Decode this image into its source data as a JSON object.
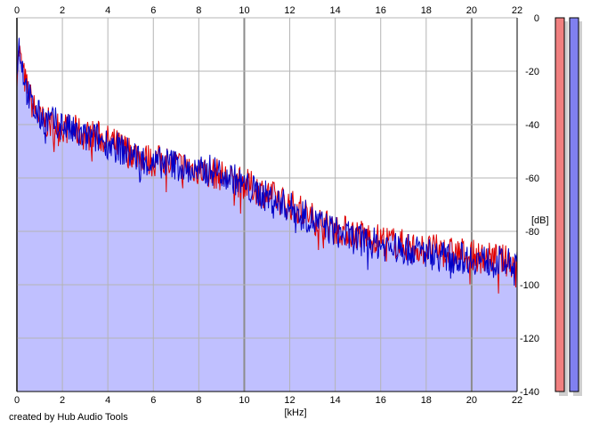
{
  "footer": {
    "credit": "created by Hub Audio Tools"
  },
  "colors": {
    "background": "#ffffff",
    "fill": "#c0c0ff",
    "grid": "#b4b4b4",
    "grid_major": "#8c8c8c",
    "channel_left": "#e00000",
    "channel_right": "#0000c8",
    "meter_left": "#f08080",
    "meter_right": "#8080f0"
  },
  "chart_data": {
    "type": "line",
    "title": "",
    "xlabel": "[kHz]",
    "ylabel": "[dB]",
    "xlim": [
      0,
      22
    ],
    "ylim": [
      -140,
      0
    ],
    "x_ticks": [
      0,
      2,
      4,
      6,
      8,
      10,
      12,
      14,
      16,
      18,
      20,
      22
    ],
    "y_ticks": [
      0,
      -20,
      -40,
      -60,
      -80,
      -100,
      -120,
      -140
    ],
    "grid": true,
    "fill_under": true,
    "series": [
      {
        "color": "#e00000",
        "x": [
          0,
          0.1,
          0.2,
          0.4,
          0.7,
          1.0,
          1.5,
          2.0,
          2.5,
          3.0,
          3.5,
          4.0,
          4.5,
          5.0,
          5.5,
          6.0,
          6.5,
          7.0,
          7.5,
          8.0,
          8.5,
          9.0,
          9.5,
          10.0,
          10.5,
          11.0,
          11.5,
          12.0,
          12.5,
          13.0,
          13.5,
          14.0,
          14.5,
          15.0,
          15.5,
          16.0,
          16.5,
          17.0,
          17.5,
          18.0,
          18.5,
          19.0,
          19.5,
          20.0,
          20.5,
          21.0,
          21.5,
          22.0
        ],
        "values": [
          -20,
          -12,
          -18,
          -25,
          -33,
          -38,
          -40,
          -41,
          -42,
          -44,
          -44,
          -46,
          -48,
          -50,
          -52,
          -54,
          -53,
          -55,
          -56,
          -57,
          -58,
          -59,
          -61,
          -62,
          -64,
          -66,
          -68,
          -70,
          -72,
          -75,
          -77,
          -79,
          -80,
          -81,
          -82,
          -83,
          -84,
          -85,
          -86,
          -87,
          -87,
          -88,
          -88,
          -89,
          -90,
          -90,
          -91,
          -92
        ]
      },
      {
        "color": "#0000c8",
        "x": [
          0,
          0.1,
          0.2,
          0.4,
          0.7,
          1.0,
          1.5,
          2.0,
          2.5,
          3.0,
          3.5,
          4.0,
          4.5,
          5.0,
          5.5,
          6.0,
          6.5,
          7.0,
          7.5,
          8.0,
          8.5,
          9.0,
          9.5,
          10.0,
          10.5,
          11.0,
          11.5,
          12.0,
          12.5,
          13.0,
          13.5,
          14.0,
          14.5,
          15.0,
          15.5,
          16.0,
          16.5,
          17.0,
          17.5,
          18.0,
          18.5,
          19.0,
          19.5,
          20.0,
          20.5,
          21.0,
          21.5,
          22.0
        ],
        "values": [
          -18,
          -10,
          -16,
          -26,
          -34,
          -37,
          -39,
          -40,
          -43,
          -45,
          -45,
          -47,
          -49,
          -51,
          -53,
          -55,
          -54,
          -55,
          -57,
          -58,
          -57,
          -58,
          -60,
          -63,
          -65,
          -67,
          -69,
          -71,
          -73,
          -76,
          -78,
          -80,
          -82,
          -83,
          -84,
          -85,
          -86,
          -87,
          -87,
          -88,
          -89,
          -90,
          -90,
          -90,
          -91,
          -91,
          -92,
          -93
        ]
      }
    ]
  }
}
